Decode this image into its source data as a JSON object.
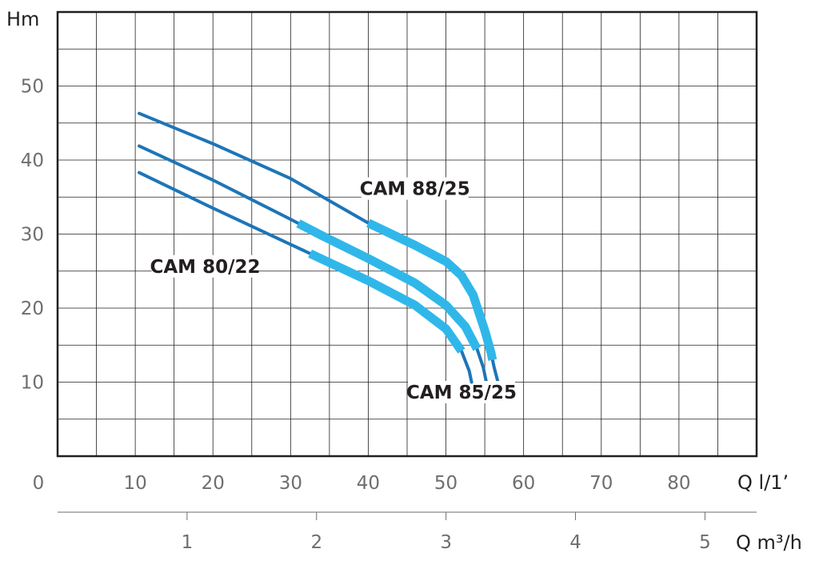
{
  "chart_data": {
    "type": "line",
    "y_unit_label": "Hm",
    "x_unit_label": "Q l/1’",
    "x2_unit_label": "Q m³/h",
    "xlim": [
      0,
      90
    ],
    "ylim": [
      0,
      60
    ],
    "x_ticks": [
      0,
      10,
      20,
      30,
      40,
      50,
      60,
      70,
      80
    ],
    "y_ticks": [
      10,
      20,
      30,
      40,
      50
    ],
    "x2_ticks": [
      1,
      2,
      3,
      4,
      5
    ],
    "grid": true,
    "colors": {
      "curve": "#1d75b8",
      "operating_range": "#30b7ea",
      "grid": "#231f20"
    },
    "series": [
      {
        "name": "CAM 88/25",
        "label_at": [
          46,
          35.5
        ],
        "x": [
          10.5,
          20,
          30,
          40,
          46,
          50,
          52,
          53.5,
          55,
          55.8,
          56.2,
          56.5,
          56.7
        ],
        "y": [
          46.3,
          42.2,
          37.5,
          31.5,
          28.5,
          26.3,
          24.4,
          21.8,
          17,
          14,
          12,
          10.8,
          10
        ],
        "operating_range": [
          40,
          56
        ]
      },
      {
        "name": "CAM 85/25",
        "label_at": [
          52,
          8
        ],
        "x": [
          10.5,
          20,
          30,
          34,
          40,
          46,
          50,
          52.5,
          54,
          54.8,
          55.2
        ],
        "y": [
          41.9,
          37.3,
          32,
          29.8,
          26.7,
          23.4,
          20.4,
          17.5,
          14.5,
          12,
          10
        ],
        "operating_range": [
          31,
          54
        ]
      },
      {
        "name": "CAM 80/22",
        "label_at": [
          19,
          25
        ],
        "x": [
          10.5,
          20,
          30,
          40,
          46,
          50,
          52,
          53,
          53.3
        ],
        "y": [
          38.3,
          33.5,
          28.6,
          23.7,
          20.4,
          17.2,
          14.2,
          11.5,
          10
        ],
        "operating_range": [
          32.5,
          52
        ]
      }
    ]
  }
}
